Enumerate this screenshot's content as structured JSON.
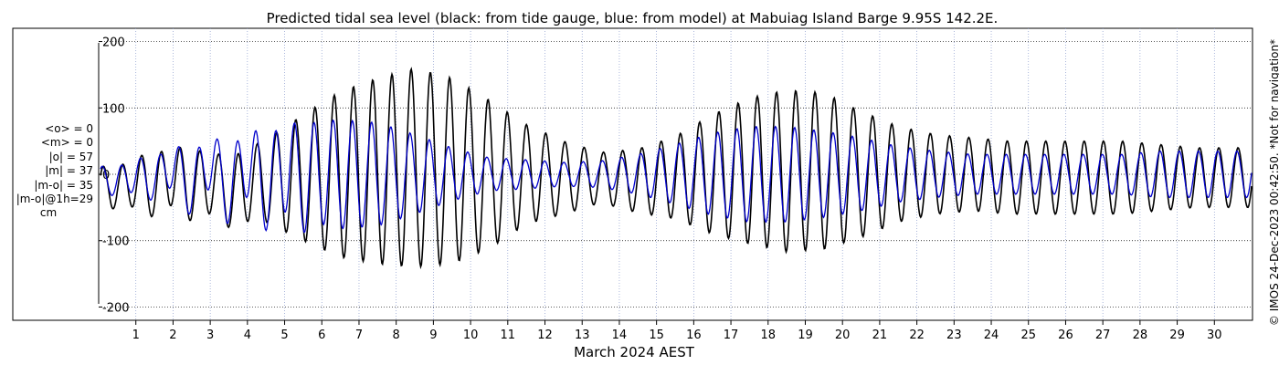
{
  "chart_data": {
    "type": "line",
    "title": "Predicted tidal sea level (black: from tide gauge, blue: from model) at Mabuiag Island Barge 9.95S 142.2E.",
    "xlabel": "March 2024 AEST",
    "ylabel": "",
    "ylim": [
      -220,
      220
    ],
    "xlim": [
      0,
      31
    ],
    "y_ticks": [
      200,
      100,
      0,
      -100,
      -200
    ],
    "y_tick_labels": [
      "200",
      "100",
      "0",
      "-100",
      "-200"
    ],
    "x_ticks": [
      1,
      2,
      3,
      4,
      5,
      6,
      7,
      8,
      9,
      10,
      11,
      12,
      13,
      14,
      15,
      16,
      17,
      18,
      19,
      20,
      21,
      22,
      23,
      24,
      25,
      26,
      27,
      28,
      29,
      30
    ],
    "x_tick_labels": [
      "1",
      "2",
      "3",
      "4",
      "5",
      "6",
      "7",
      "8",
      "9",
      "10",
      "11",
      "12",
      "13",
      "14",
      "15",
      "16",
      "17",
      "18",
      "19",
      "20",
      "21",
      "22",
      "23",
      "24",
      "25",
      "26",
      "27",
      "28",
      "29",
      "30"
    ],
    "grid": true,
    "series": [
      {
        "color": "#000000",
        "daily_envelope_cm": [
          32,
          45,
          50,
          50,
          62,
          95,
          125,
          140,
          150,
          140,
          112,
          75,
          55,
          38,
          48,
          62,
          90,
          110,
          122,
          118,
          95,
          72,
          60,
          55,
          55,
          55,
          55,
          55,
          50,
          45,
          45
        ],
        "daily_asymmetry_cm": [
          0,
          10,
          10,
          5,
          0,
          0,
          0,
          0,
          0,
          0,
          0,
          0,
          0,
          0,
          0,
          0,
          0,
          0,
          0,
          0,
          0,
          0,
          0,
          0,
          0,
          0,
          0,
          0,
          0,
          0,
          0
        ],
        "daily_offset_cm": [
          -20,
          -10,
          -10,
          -25,
          -10,
          -5,
          0,
          5,
          10,
          5,
          0,
          0,
          -5,
          -5,
          -10,
          -5,
          0,
          5,
          5,
          5,
          0,
          0,
          0,
          0,
          -5,
          -5,
          -5,
          -5,
          -5,
          -5,
          -5
        ]
      },
      {
        "color": "#0000cc",
        "daily_envelope_cm": [
          22,
          30,
          42,
          50,
          65,
          78,
          82,
          78,
          60,
          40,
          25,
          22,
          18,
          20,
          30,
          45,
          62,
          72,
          72,
          65,
          55,
          42,
          35,
          30,
          30,
          30,
          30,
          30,
          35,
          35,
          35
        ],
        "daily_asymmetry_cm": [
          0,
          10,
          20,
          25,
          20,
          10,
          0,
          0,
          0,
          0,
          0,
          0,
          0,
          0,
          0,
          0,
          0,
          0,
          0,
          0,
          0,
          0,
          0,
          0,
          0,
          0,
          0,
          0,
          0,
          0,
          0
        ],
        "daily_offset_cm": [
          -10,
          0,
          0,
          0,
          0,
          0,
          0,
          0,
          0,
          0,
          0,
          0,
          0,
          0,
          0,
          0,
          0,
          0,
          0,
          0,
          0,
          0,
          0,
          0,
          0,
          0,
          0,
          0,
          0,
          0,
          0
        ]
      }
    ],
    "annotations": {
      "stats": [
        "<o> = 0",
        "<m> = 0",
        "|o| = 57",
        "|m| = 37",
        "|m-o| = 35",
        "|m-o|@1h=29"
      ],
      "unit": "cm",
      "credit": "© IMOS 24-Dec-2023 00:42:50. *Not for navigation*"
    }
  }
}
